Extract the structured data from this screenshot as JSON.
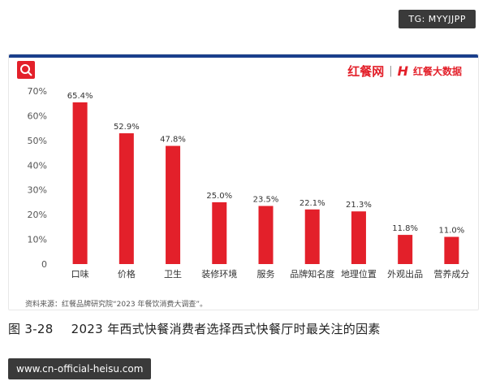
{
  "overlay": {
    "tag_text": "TG: MYYJJPP",
    "url_text": "www.cn-official-heisu.com"
  },
  "brand": {
    "logo_text": "红餐网",
    "separator": "|",
    "mark": "H",
    "sublogo_text": "红餐大数据"
  },
  "source_text": "资料来源：红餐品牌研究院“2023 年餐饮消费大调查”。",
  "caption": {
    "number": "图 3-28",
    "text": "2023 年西式快餐消费者选择西式快餐厅时最关注的因素"
  },
  "colors": {
    "bar": "#e3202a",
    "accent_bar": "#1a3f8c",
    "grid": "#d9d9d9",
    "text": "#222222"
  },
  "chart_data": {
    "type": "bar",
    "categories": [
      "口味",
      "价格",
      "卫生",
      "装修环境",
      "服务",
      "品牌知名度",
      "地理位置",
      "外观出品",
      "营养成分"
    ],
    "values": [
      65.4,
      52.9,
      47.8,
      25.0,
      23.5,
      22.1,
      21.3,
      11.8,
      11.0
    ],
    "value_labels": [
      "65.4%",
      "52.9%",
      "47.8%",
      "25.0%",
      "23.5%",
      "22.1%",
      "21.3%",
      "11.8%",
      "11.0%"
    ],
    "ylim": [
      0,
      70
    ],
    "yticks": [
      0,
      10,
      20,
      30,
      40,
      50,
      60,
      70
    ],
    "ytick_labels": [
      "0",
      "10%",
      "20%",
      "30%",
      "40%",
      "50%",
      "60%",
      "70%"
    ],
    "grid": false
  }
}
